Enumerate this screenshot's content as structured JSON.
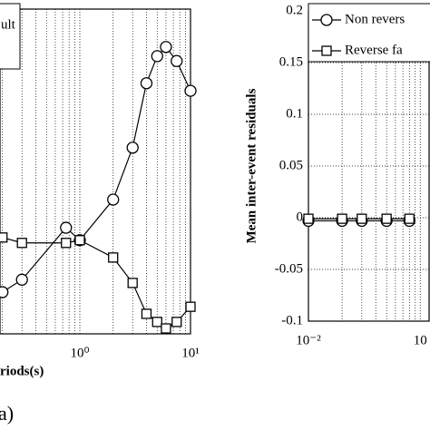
{
  "chart_data": [
    {
      "type": "line",
      "x_log": true,
      "xlabel": "riods(s)",
      "panel_label": "a)",
      "x": [
        0.2,
        0.3,
        0.75,
        1,
        2,
        3,
        4,
        5,
        6,
        7.5,
        10
      ],
      "xlim": [
        0.19,
        10
      ],
      "xticks": [
        {
          "value": 1,
          "label": "10⁰"
        },
        {
          "value": 10,
          "label": "10¹"
        }
      ],
      "ylim": [
        -0.3,
        0.3
      ],
      "minor_grid": true,
      "series": [
        {
          "name": "ult",
          "color": "#000000",
          "marker": "circle",
          "values": [
            -0.223,
            -0.2,
            -0.104,
            -0.127,
            -0.052,
            0.044,
            0.163,
            0.213,
            0.23,
            0.204,
            0.149
          ]
        },
        {
          "color": "#000000",
          "marker": "square",
          "values": [
            -0.122,
            -0.132,
            -0.132,
            -0.127,
            -0.159,
            -0.206,
            -0.263,
            -0.278,
            -0.29,
            -0.278,
            -0.25
          ]
        }
      ]
    },
    {
      "type": "line",
      "x_log": true,
      "ylabel": "Mean inter-event residuals",
      "x": [
        0.01,
        0.02,
        0.03,
        0.05,
        0.08
      ],
      "xlim": [
        0.01,
        0.12
      ],
      "xticks": [
        {
          "value": 0.01,
          "label": "10⁻²"
        },
        {
          "value": 0.1,
          "label": "10"
        }
      ],
      "ylim": [
        -0.1,
        0.2
      ],
      "yticks": [
        -0.1,
        -0.05,
        0,
        0.05,
        0.1,
        0.15,
        0.2
      ],
      "grid": true,
      "minor_grid": true,
      "series": [
        {
          "name": "Non revers",
          "color": "#000000",
          "marker": "circle",
          "values": [
            -0.003,
            -0.003,
            -0.003,
            -0.003,
            -0.003
          ]
        },
        {
          "name": "Reverse fa",
          "color": "#000000",
          "marker": "square",
          "values": [
            -0.001,
            -0.001,
            -0.001,
            -0.001,
            -0.001
          ]
        }
      ]
    }
  ]
}
